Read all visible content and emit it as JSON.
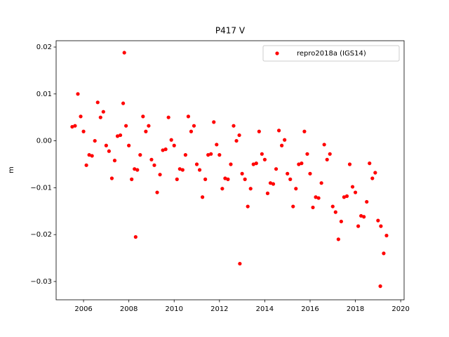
{
  "chart_data": {
    "type": "scatter",
    "title": "P417 V",
    "y_label": "m",
    "x": [
      2005.5,
      2005.625,
      2005.75,
      2005.875,
      2006,
      2006.125,
      2006.25,
      2006.375,
      2006.5,
      2006.625,
      2006.75,
      2006.875,
      2007,
      2007.125,
      2007.25,
      2007.375,
      2007.5,
      2007.625,
      2007.75,
      2007.875,
      2008,
      2008.125,
      2008.25,
      2008.375,
      2008.5,
      2008.625,
      2008.75,
      2008.875,
      2009,
      2009.125,
      2009.25,
      2009.375,
      2009.5,
      2009.625,
      2009.75,
      2009.875,
      2010,
      2010.125,
      2010.25,
      2010.375,
      2010.5,
      2010.625,
      2010.75,
      2010.875,
      2011,
      2011.125,
      2011.25,
      2011.375,
      2011.5,
      2011.625,
      2011.75,
      2011.875,
      2012,
      2012.125,
      2012.25,
      2012.375,
      2012.5,
      2012.625,
      2012.75,
      2012.875,
      2013,
      2013.125,
      2013.25,
      2013.375,
      2013.5,
      2013.625,
      2013.75,
      2013.875,
      2014,
      2014.125,
      2014.25,
      2014.375,
      2014.5,
      2014.625,
      2014.75,
      2014.875,
      2015,
      2015.125,
      2015.25,
      2015.375,
      2015.5,
      2015.625,
      2015.75,
      2015.875,
      2016,
      2016.125,
      2016.25,
      2016.375,
      2016.5,
      2016.625,
      2016.75,
      2016.875,
      2017,
      2017.125,
      2017.25,
      2017.375,
      2017.5,
      2017.625,
      2017.75,
      2017.875,
      2018,
      2018.125,
      2018.25,
      2018.375,
      2018.5,
      2018.625,
      2018.75,
      2018.875,
      2019,
      2019.125,
      2019.25,
      2019.375,
      2007.8,
      2012.9,
      2019.1,
      2008.3
    ],
    "series": [
      {
        "name": "repro2018a (IGS14)",
        "color": "#ff0000",
        "values": [
          0.003,
          0.0032,
          0.01,
          0.0052,
          0.002,
          -0.0052,
          -0.003,
          -0.0032,
          0.0,
          0.0082,
          0.005,
          0.0062,
          -0.001,
          -0.0022,
          -0.008,
          -0.0042,
          0.001,
          0.0012,
          0.008,
          0.0032,
          -0.001,
          -0.0082,
          -0.006,
          -0.0062,
          -0.003,
          0.0052,
          0.002,
          0.0032,
          -0.004,
          -0.0052,
          -0.011,
          -0.0072,
          -0.002,
          -0.0018,
          0.005,
          0.0002,
          -0.001,
          -0.0082,
          -0.006,
          -0.0062,
          -0.003,
          0.0052,
          0.002,
          0.0032,
          -0.005,
          -0.0062,
          -0.012,
          -0.0082,
          -0.003,
          -0.0028,
          0.004,
          -0.0008,
          -0.003,
          -0.0102,
          -0.008,
          -0.0082,
          -0.005,
          0.0032,
          0.0,
          0.0012,
          -0.007,
          -0.0082,
          -0.014,
          -0.0102,
          -0.005,
          -0.0048,
          0.002,
          -0.0028,
          -0.004,
          -0.0112,
          -0.009,
          -0.0092,
          -0.006,
          0.0022,
          -0.001,
          0.0002,
          -0.007,
          -0.0082,
          -0.014,
          -0.0102,
          -0.005,
          -0.0048,
          0.002,
          -0.0028,
          -0.007,
          -0.0142,
          -0.012,
          -0.0122,
          -0.009,
          -0.0008,
          -0.004,
          -0.0028,
          -0.014,
          -0.0152,
          -0.021,
          -0.0172,
          -0.012,
          -0.0118,
          -0.005,
          -0.0098,
          -0.011,
          -0.0182,
          -0.016,
          -0.0162,
          -0.013,
          -0.0048,
          -0.008,
          -0.0068,
          -0.017,
          -0.0182,
          -0.024,
          -0.0202,
          0.0188,
          -0.0262,
          -0.031,
          -0.0205
        ]
      }
    ],
    "xlim": [
      2004.79,
      2020.15
    ],
    "xticks": [
      2006,
      2008,
      2010,
      2012,
      2014,
      2016,
      2018,
      2020
    ],
    "ylim": [
      -0.0339,
      0.02135
    ],
    "yticks": [
      {
        "value": -0.03,
        "label": "−0.03"
      },
      {
        "value": -0.02,
        "label": "−0.02"
      },
      {
        "value": -0.01,
        "label": "−0.01"
      },
      {
        "value": 0,
        "label": "0.00"
      },
      0.01,
      0.02
    ],
    "legend": "upper right",
    "grid": false
  }
}
